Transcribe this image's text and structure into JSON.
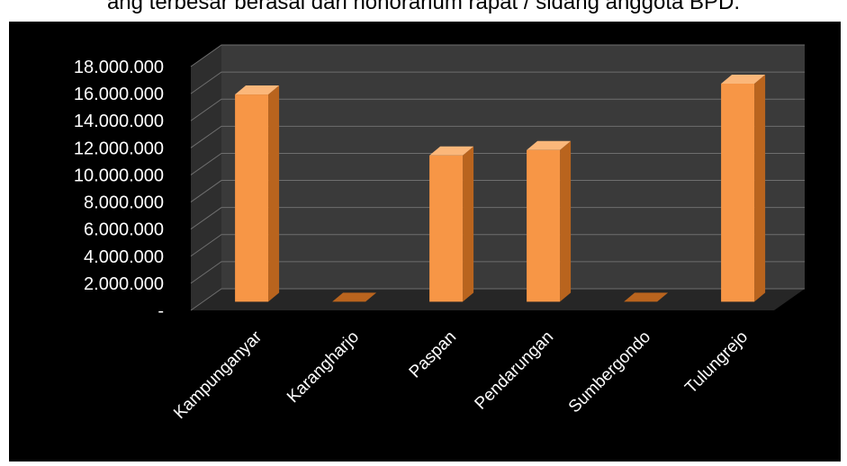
{
  "caption": "ang terbesar berasal dari honorarium rapat / sidang anggota BPD.",
  "chart_data": {
    "type": "bar",
    "style": "3d-column",
    "title": "",
    "xlabel": "",
    "ylabel": "",
    "categories": [
      "Kampunganyar",
      "Karangharjo",
      "Paspan",
      "Pendarungan",
      "Sumbergondo",
      "Tulungrejo"
    ],
    "values": [
      15300000,
      0,
      10800000,
      11200000,
      0,
      16100000
    ],
    "ylim": [
      0,
      18000000
    ],
    "yticks": [
      "-",
      "2.000.000",
      "4.000.000",
      "6.000.000",
      "8.000.000",
      "10.000.000",
      "12.000.000",
      "14.000.000",
      "16.000.000",
      "18.000.000"
    ],
    "grid": true,
    "legend": "none",
    "colors": {
      "background": "#000000",
      "wall": "#3a3a3a",
      "floor": "#262626",
      "gridline": "#6e6e6e",
      "bar_front": "#f79646",
      "bar_side": "#b9641e",
      "bar_top": "#fbb77a",
      "text": "#ffffff"
    }
  }
}
